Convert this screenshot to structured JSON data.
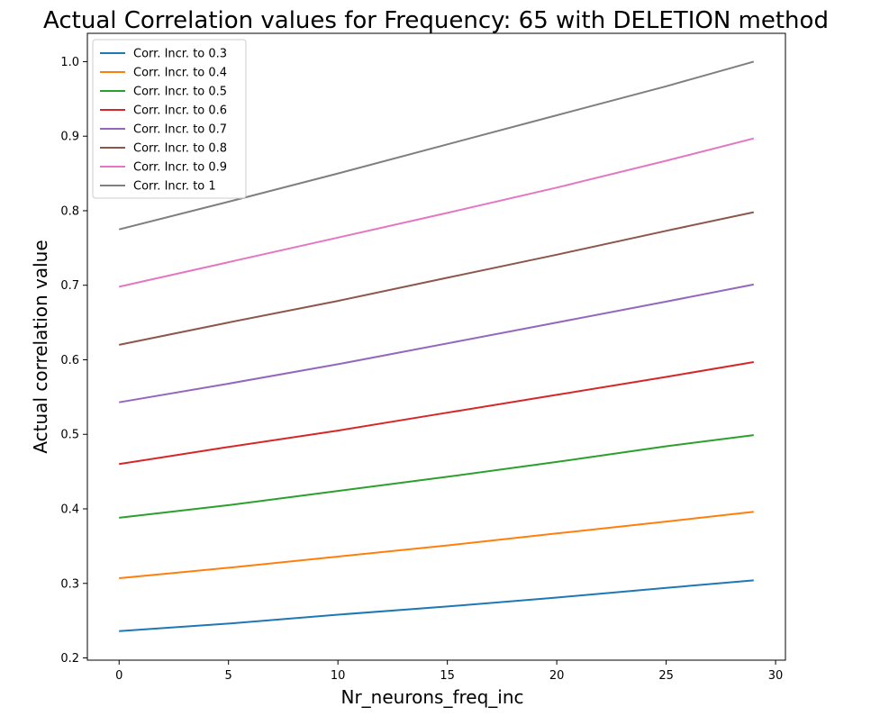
{
  "chart_data": {
    "type": "line",
    "title": "Actual Correlation values for Frequency:  65 with DELETION method",
    "xlabel": "Nr_neurons_freq_inc",
    "ylabel": "Actual correlation value",
    "xlim": [
      -1.45,
      30.45
    ],
    "ylim": [
      0.197,
      1.038
    ],
    "xticks": [
      0,
      5,
      10,
      15,
      20,
      25,
      30
    ],
    "yticks": [
      0.2,
      0.3,
      0.4,
      0.5,
      0.6,
      0.7,
      0.8,
      0.9,
      1.0
    ],
    "xtick_labels": [
      "0",
      "5",
      "10",
      "15",
      "20",
      "25",
      "30"
    ],
    "ytick_labels": [
      "0.2",
      "0.3",
      "0.4",
      "0.5",
      "0.6",
      "0.7",
      "0.8",
      "0.9",
      "1.0"
    ],
    "grid": false,
    "legend_position": "top-left",
    "x": [
      0,
      5,
      10,
      15,
      20,
      25,
      29
    ],
    "series": [
      {
        "name": "Corr. Incr. to 0.3",
        "color": "#1f77b4",
        "values": [
          0.236,
          0.246,
          0.258,
          0.269,
          0.281,
          0.294,
          0.304
        ]
      },
      {
        "name": "Corr. Incr. to 0.4",
        "color": "#ff7f0e",
        "values": [
          0.307,
          0.321,
          0.336,
          0.351,
          0.367,
          0.383,
          0.396
        ]
      },
      {
        "name": "Corr. Incr. to 0.5",
        "color": "#2ca02c",
        "values": [
          0.388,
          0.405,
          0.424,
          0.443,
          0.463,
          0.484,
          0.499
        ]
      },
      {
        "name": "Corr. Incr. to 0.6",
        "color": "#d62728",
        "values": [
          0.46,
          0.483,
          0.505,
          0.529,
          0.553,
          0.577,
          0.597
        ]
      },
      {
        "name": "Corr. Incr. to 0.7",
        "color": "#9467bd",
        "values": [
          0.543,
          0.568,
          0.594,
          0.622,
          0.65,
          0.678,
          0.701
        ]
      },
      {
        "name": "Corr. Incr. to 0.8",
        "color": "#8c564b",
        "values": [
          0.62,
          0.65,
          0.679,
          0.71,
          0.741,
          0.773,
          0.798
        ]
      },
      {
        "name": "Corr. Incr. to 0.9",
        "color": "#e377c2",
        "values": [
          0.698,
          0.731,
          0.764,
          0.797,
          0.831,
          0.867,
          0.897
        ]
      },
      {
        "name": "Corr. Incr. to 1",
        "color": "#7f7f7f",
        "values": [
          0.775,
          0.812,
          0.85,
          0.889,
          0.928,
          0.967,
          1.0
        ]
      }
    ]
  }
}
